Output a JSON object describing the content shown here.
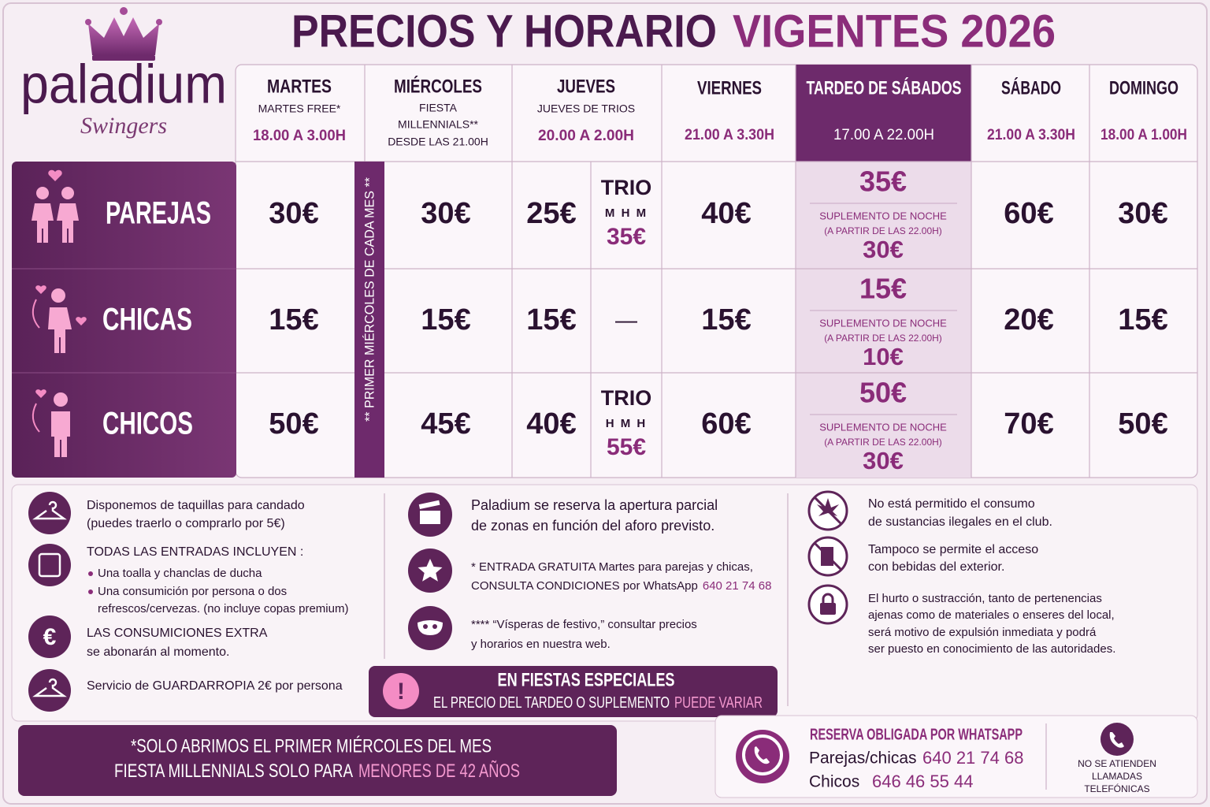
{
  "logo": {
    "brand": "paladium",
    "tagline": "Swingers"
  },
  "title": {
    "main": "PRECIOS Y HORARIO",
    "highlight": "VIGENTES 2026"
  },
  "schedule": [
    {
      "day": "MARTES",
      "details": [
        "MARTES FREE*"
      ],
      "hours": "18.00 A 3.00H"
    },
    {
      "day": "MIÉRCOLES",
      "details": [
        "FIESTA",
        "MILLENNIALS**",
        "DESDE LAS 21.00H"
      ]
    },
    {
      "day": "JUEVES",
      "details": [
        "JUEVES DE TRIOS"
      ],
      "hours": "20.00 A 2.00H"
    },
    {
      "day": "VIERNES",
      "hours": "21.00 A 3.30H"
    },
    {
      "day": "TARDEO DE SÁBADOS",
      "hours": "17.00 A 22.00H"
    },
    {
      "day": "SÁBADO",
      "hours": "21.00 A 3.30H"
    },
    {
      "day": "DOMINGO",
      "hours": "18.00 A 1.00H"
    }
  ],
  "first_wednesday_note": "** PRIMER MIÉRCOLES DE CADA MES **",
  "rows": [
    {
      "group": "PAREJAS",
      "martes": "30€",
      "miercoles": "30€",
      "jueves": "25€",
      "trio": {
        "title": "TRIO",
        "combo": "M H M",
        "price": "35€"
      },
      "viernes": "40€",
      "tardeo": {
        "price": "35€",
        "note": "SUPLEMENTO DE NOCHE",
        "from": "(A PARTIR DE LAS 22.00H)",
        "night_price": "30€"
      },
      "sabado": "60€",
      "domingo": "30€"
    },
    {
      "group": "CHICAS",
      "martes": "15€",
      "miercoles": "15€",
      "jueves": "15€",
      "trio": {
        "none": "—"
      },
      "viernes": "15€",
      "tardeo": {
        "price": "15€",
        "note": "SUPLEMENTO DE NOCHE",
        "from": "(A PARTIR DE LAS 22.00H)",
        "night_price": "10€"
      },
      "sabado": "20€",
      "domingo": "15€"
    },
    {
      "group": "CHICOS",
      "martes": "50€",
      "miercoles": "45€",
      "jueves": "40€",
      "trio": {
        "title": "TRIO",
        "combo": "H M H",
        "price": "55€"
      },
      "viernes": "60€",
      "tardeo": {
        "price": "50€",
        "note": "SUPLEMENTO DE NOCHE",
        "from": "(A PARTIR DE LAS 22.00H)",
        "night_price": "30€"
      },
      "sabado": "70€",
      "domingo": "50€"
    }
  ],
  "amenities": [
    {
      "lines": [
        "Disponemos de taquillas para candado",
        "(puedes traerlo o comprarlo por 5€)"
      ]
    },
    {
      "heading": "TODAS LAS ENTRADAS INCLUYEN :",
      "bullets": [
        [
          "Una toalla y chanclas de ducha"
        ],
        [
          "Una consumición por persona o dos",
          "refrescos/cervezas. (no incluye copas premium)"
        ]
      ]
    },
    {
      "lines": [
        "LAS CONSUMICIONES EXTRA",
        "se abonarán al momento."
      ]
    },
    {
      "lines": [
        "Servicio de GUARDARROPIA 2€ por persona"
      ]
    }
  ],
  "policies": [
    {
      "lines": [
        "Paladium se reserva la apertura parcial",
        "de zonas en función del aforo previsto."
      ]
    },
    {
      "lines": [
        "* ENTRADA GRATUITA Martes para parejas y chicas,",
        "CONSULTA CONDICIONES por WhatsApp"
      ],
      "phone": "640 21 74 68"
    },
    {
      "lines": [
        "**** “Vísperas de festivo,” consultar precios",
        "y horarios en nuestra web."
      ]
    }
  ],
  "special": {
    "title": "EN FIESTAS ESPECIALES",
    "text": "EL PRECIO DEL TARDEO O SUPLEMENTO",
    "highlight": "PUEDE VARIAR"
  },
  "rules": [
    {
      "lines": [
        "No está permitido el consumo",
        "de sustancias ilegales en el club."
      ]
    },
    {
      "lines": [
        "Tampoco se permite el acceso",
        "con bebidas del exterior."
      ]
    },
    {
      "lines": [
        "El hurto o sustracción, tanto de pertenencias",
        "ajenas como de materiales o enseres del local,",
        "será motivo de expulsión inmediata y podrá",
        "ser puesto en conocimiento de las autoridades."
      ]
    }
  ],
  "banner": {
    "line1": "*SOLO ABRIMOS EL PRIMER MIÉRCOLES DEL MES",
    "line2": "FIESTA MILLENNIALS SOLO PARA",
    "highlight": "MENORES DE 42 AÑOS"
  },
  "booking": {
    "title": "RESERVA OBLIGADA POR WHATSAPP",
    "contacts": [
      {
        "label": "Parejas/chicas",
        "phone": "640 21 74 68"
      },
      {
        "label": "Chicos",
        "phone": "646 46 55 44"
      }
    ],
    "notice": [
      "NO SE ATIENDEN",
      "LLAMADAS",
      "TELEFÓNICAS"
    ]
  }
}
